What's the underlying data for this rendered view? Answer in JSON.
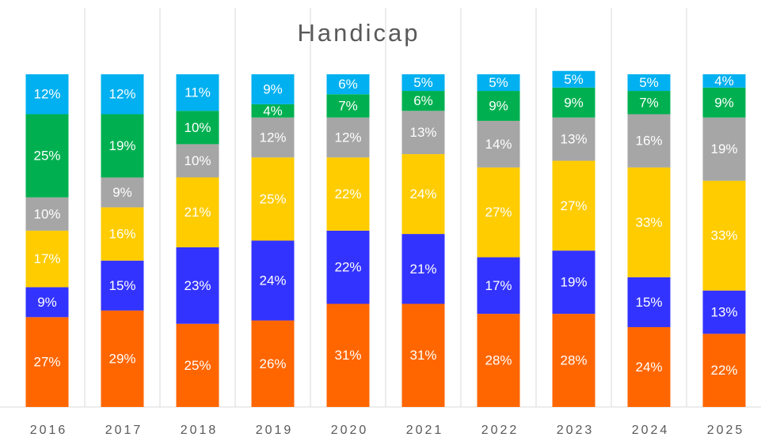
{
  "chart_data": {
    "type": "stacked_bar",
    "title": "Handicap",
    "categories": [
      "2016",
      "2017",
      "2018",
      "2019",
      "2020",
      "2021",
      "2022",
      "2023",
      "2024",
      "2025"
    ],
    "ylim": [
      0,
      100
    ],
    "series": [
      {
        "color": "#ff6600",
        "values": [
          27,
          29,
          25,
          26,
          31,
          31,
          28,
          28,
          24,
          22
        ],
        "value_labels": [
          "27%",
          "29%",
          "25%",
          "26%",
          "31%",
          "31%",
          "28%",
          "28%",
          "24%",
          "22%"
        ]
      },
      {
        "color": "#3333ff",
        "values": [
          9,
          15,
          23,
          24,
          22,
          21,
          17,
          19,
          15,
          13
        ],
        "value_labels": [
          "9%",
          "15%",
          "23%",
          "24%",
          "22%",
          "21%",
          "17%",
          "19%",
          "15%",
          "13%"
        ]
      },
      {
        "color": "#ffcc00",
        "values": [
          17,
          16,
          21,
          25,
          22,
          24,
          27,
          27,
          33,
          33
        ],
        "value_labels": [
          "17%",
          "16%",
          "21%",
          "25%",
          "22%",
          "24%",
          "27%",
          "27%",
          "33%",
          "33%"
        ]
      },
      {
        "color": "#a6a6a6",
        "values": [
          10,
          9,
          10,
          12,
          12,
          13,
          14,
          13,
          16,
          19
        ],
        "value_labels": [
          "10%",
          "9%",
          "10%",
          "12%",
          "12%",
          "13%",
          "14%",
          "13%",
          "16%",
          "19%"
        ]
      },
      {
        "color": "#00b050",
        "values": [
          25,
          19,
          10,
          4,
          7,
          6,
          9,
          9,
          7,
          9
        ],
        "value_labels": [
          "25%",
          "19%",
          "10%",
          "4%",
          "7%",
          "6%",
          "9%",
          "9%",
          "7%",
          "9%"
        ]
      },
      {
        "color": "#00b0f0",
        "values": [
          12,
          12,
          11,
          9,
          6,
          5,
          5,
          5,
          5,
          4
        ],
        "value_labels": [
          "12%",
          "12%",
          "11%",
          "9%",
          "6%",
          "5%",
          "5%",
          "5%",
          "5%",
          "4%"
        ]
      }
    ]
  }
}
